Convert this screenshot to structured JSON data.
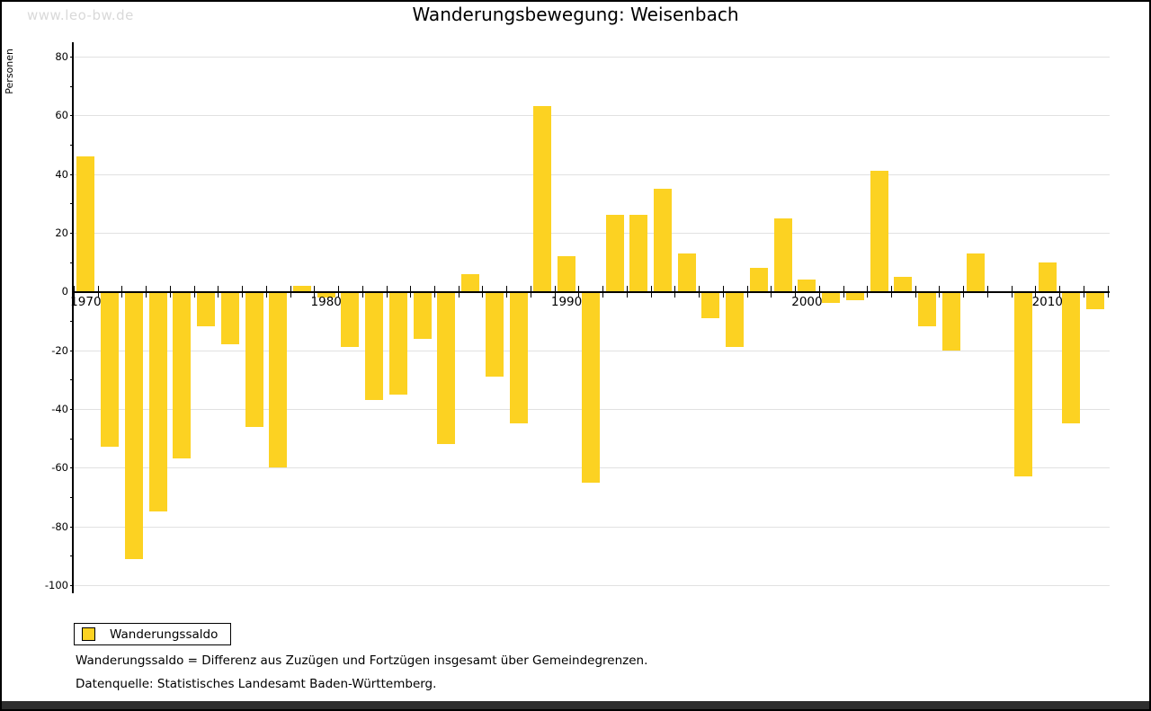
{
  "watermark": "www.leo-bw.de",
  "title": "Wanderungsbewegung: Weisenbach",
  "ylabel": "Personen",
  "legend": {
    "label": "Wanderungssaldo"
  },
  "footnotes": [
    "Wanderungssaldo = Differenz aus Zuzügen und Fortzügen insgesamt über Gemeindegrenzen.",
    "Datenquelle: Statistisches Landesamt Baden-Württemberg."
  ],
  "colors": {
    "bar": "#fcd222",
    "grid": "#e1e1e1",
    "axis": "#000000",
    "watermark": "#d9d9d9",
    "bottom_bar": "#2e2e2e"
  },
  "chart_data": {
    "type": "bar",
    "title": "Wanderungsbewegung: Weisenbach",
    "series_name": "Wanderungssaldo",
    "ylabel": "Personen",
    "x": [
      1970,
      1971,
      1972,
      1973,
      1974,
      1975,
      1976,
      1977,
      1978,
      1979,
      1980,
      1981,
      1982,
      1983,
      1984,
      1985,
      1986,
      1987,
      1988,
      1989,
      1990,
      1991,
      1992,
      1993,
      1994,
      1995,
      1996,
      1997,
      1998,
      1999,
      2000,
      2001,
      2002,
      2003,
      2004,
      2005,
      2006,
      2007,
      2008,
      2009,
      2010,
      2011,
      2012
    ],
    "values": [
      46,
      -53,
      -91,
      -75,
      -57,
      -12,
      -18,
      -46,
      -60,
      2,
      -2,
      -19,
      -37,
      -35,
      -16,
      -52,
      6,
      -29,
      -45,
      63,
      12,
      -65,
      26,
      26,
      35,
      13,
      -9,
      -19,
      8,
      25,
      4,
      -4,
      -3,
      41,
      5,
      -12,
      -20,
      13,
      0,
      -63,
      10,
      -45,
      -6
    ],
    "ylim": [
      -100,
      80
    ],
    "ytick_step": 20,
    "ytick_labels": [
      "80",
      "60",
      "40",
      "20",
      "0",
      "-20",
      "-40",
      "-60",
      "-80",
      "-100"
    ],
    "xtick_labels": [
      "1970",
      "1980",
      "1990",
      "2000",
      "2010"
    ],
    "grid": true,
    "legend_position": "bottom-left"
  }
}
